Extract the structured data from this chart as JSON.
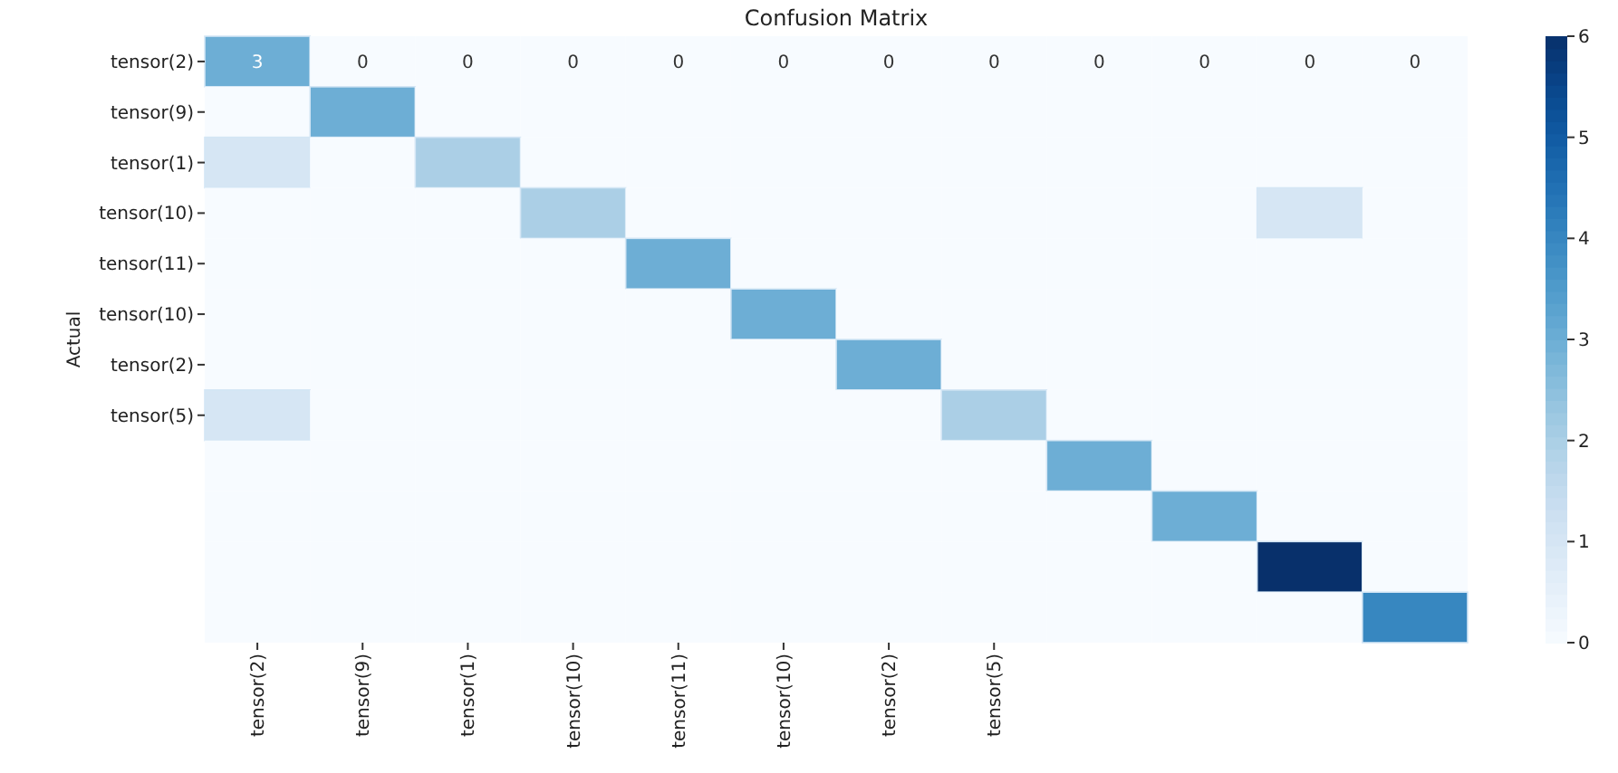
{
  "chart_data": {
    "type": "heatmap",
    "title": "Confusion Matrix",
    "ylabel": "Actual",
    "categories": [
      "tensor(2)",
      "tensor(9)",
      "tensor(1)",
      "tensor(10)",
      "tensor(11)",
      "tensor(10)",
      "tensor(2)",
      "tensor(5)",
      null,
      null,
      null,
      null
    ],
    "y_categories": [
      "tensor(2)",
      "tensor(9)",
      "tensor(1)",
      "tensor(10)",
      "tensor(11)",
      "tensor(10)",
      "tensor(2)",
      "tensor(5)",
      null,
      null,
      null,
      null
    ],
    "cells": [
      [
        3,
        0,
        0,
        0,
        0,
        0,
        0,
        0,
        0,
        0,
        0,
        0
      ],
      [
        0,
        3,
        0,
        0,
        0,
        0,
        0,
        0,
        0,
        0,
        0,
        0
      ],
      [
        1,
        0,
        2,
        0,
        0,
        0,
        0,
        0,
        0,
        0,
        0,
        0
      ],
      [
        0,
        0,
        0,
        2,
        0,
        0,
        0,
        0,
        0,
        0,
        1,
        0
      ],
      [
        0,
        0,
        0,
        0,
        3,
        0,
        0,
        0,
        0,
        0,
        0,
        0
      ],
      [
        0,
        0,
        0,
        0,
        0,
        3,
        0,
        0,
        0,
        0,
        0,
        0
      ],
      [
        0,
        0,
        0,
        0,
        0,
        0,
        3,
        0,
        0,
        0,
        0,
        0
      ],
      [
        1,
        0,
        0,
        0,
        0,
        0,
        0,
        2,
        0,
        0,
        0,
        0
      ],
      [
        0,
        0,
        0,
        0,
        0,
        0,
        0,
        0,
        3,
        0,
        0,
        0
      ],
      [
        0,
        0,
        0,
        0,
        0,
        0,
        0,
        0,
        0,
        3,
        0,
        0
      ],
      [
        0,
        0,
        0,
        0,
        0,
        0,
        0,
        0,
        0,
        0,
        6,
        0
      ],
      [
        0,
        0,
        0,
        0,
        0,
        0,
        0,
        0,
        0,
        0,
        0,
        4
      ]
    ],
    "cell_labels": [
      [
        "3",
        "0",
        "0",
        "0",
        "0",
        "0",
        "0",
        "0",
        "0",
        "0",
        "0",
        "0"
      ],
      [
        null,
        null,
        null,
        null,
        null,
        null,
        null,
        null,
        null,
        null,
        null,
        null
      ],
      [
        null,
        null,
        null,
        null,
        null,
        null,
        null,
        null,
        null,
        null,
        null,
        null
      ],
      [
        null,
        null,
        null,
        null,
        null,
        null,
        null,
        null,
        null,
        null,
        null,
        null
      ],
      [
        null,
        null,
        null,
        null,
        null,
        null,
        null,
        null,
        null,
        null,
        null,
        null
      ],
      [
        null,
        null,
        null,
        null,
        null,
        null,
        null,
        null,
        null,
        null,
        null,
        null
      ],
      [
        null,
        null,
        null,
        null,
        null,
        null,
        null,
        null,
        null,
        null,
        null,
        null
      ],
      [
        null,
        null,
        null,
        null,
        null,
        null,
        null,
        null,
        null,
        null,
        null,
        null
      ],
      [
        null,
        null,
        null,
        null,
        null,
        null,
        null,
        null,
        null,
        null,
        null,
        null
      ],
      [
        null,
        null,
        null,
        null,
        null,
        null,
        null,
        null,
        null,
        null,
        null,
        null
      ],
      [
        null,
        null,
        null,
        null,
        null,
        null,
        null,
        null,
        null,
        null,
        null,
        null
      ],
      [
        null,
        null,
        null,
        null,
        null,
        null,
        null,
        null,
        null,
        null,
        null,
        null
      ]
    ],
    "clim": [
      0,
      6
    ],
    "cticks": [
      0,
      1,
      2,
      3,
      4,
      5,
      6
    ]
  }
}
